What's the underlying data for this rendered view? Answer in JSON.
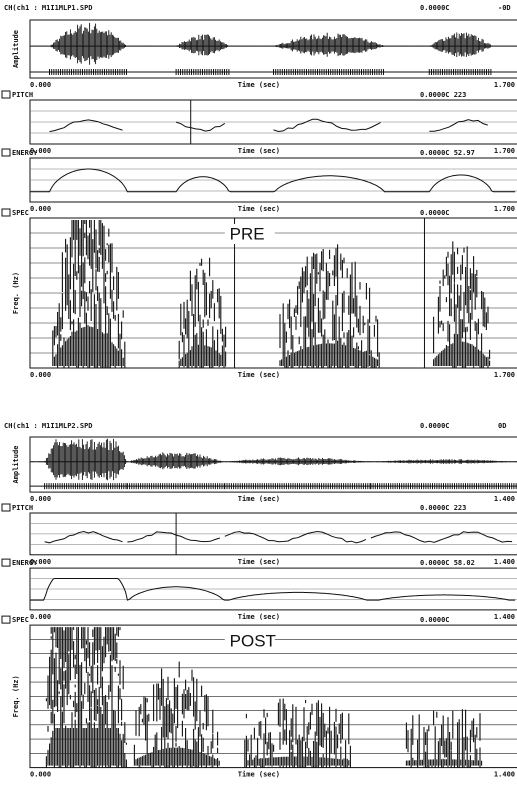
{
  "panels": [
    {
      "label": "PRE",
      "file": "CH(ch1 : M1I1MLP1.SPD",
      "readout": "0.0000C",
      "readout_right": "-0D",
      "tracks": [
        {
          "kind": "waveform",
          "y_label": "Amplitude",
          "x_start": "0.000",
          "x_label": "Time (sec)",
          "x_end": "1.700"
        },
        {
          "kind": "pitch",
          "title": "PITCH",
          "readout": "0.0000C 223",
          "x_start": "0.000",
          "x_label": "Time (sec)",
          "x_end": "1.700"
        },
        {
          "kind": "energy",
          "title": "ENERGY",
          "readout": "0.0000C 52.97",
          "x_start": "0.000",
          "x_label": "Time (sec)",
          "x_end": "1.700"
        },
        {
          "kind": "spectrogram",
          "title": "SPEC",
          "readout": "0.0000C",
          "y_label": "Freq. (Hz)",
          "x_start": "0.000",
          "x_label": "Time (sec)",
          "x_end": "1.700"
        }
      ]
    },
    {
      "label": "POST",
      "file": "CH(ch1 : M1I1MLP2.SPD",
      "readout": "0.0000C",
      "readout_right": "0D",
      "tracks": [
        {
          "kind": "waveform",
          "y_label": "Amplitude",
          "x_start": "0.000",
          "x_label": "Time (sec)",
          "x_end": "1.400"
        },
        {
          "kind": "pitch",
          "title": "PITCH",
          "readout": "0.0000C 223",
          "x_start": "0.000",
          "x_label": "Time (sec)",
          "x_end": "1.400"
        },
        {
          "kind": "energy",
          "title": "ENERGY",
          "readout": "0.0000C 58.02",
          "x_start": "0.000",
          "x_label": "Time (sec)",
          "x_end": "1.400"
        },
        {
          "kind": "spectrogram",
          "title": "SPEC",
          "readout": "0.0000C",
          "y_label": "Freq. (Hz)",
          "x_start": "0.000",
          "x_label": "Time (sec)",
          "x_end": "1.400"
        }
      ]
    }
  ]
}
